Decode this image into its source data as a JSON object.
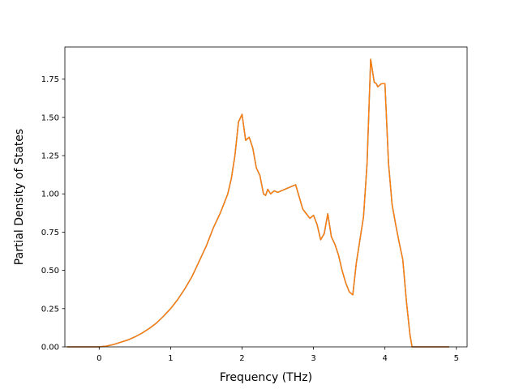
{
  "chart_data": {
    "type": "line",
    "title": "",
    "xlabel": "Frequency (THz)",
    "ylabel": "Partial Density of States",
    "xlim": [
      -0.48,
      5.15
    ],
    "ylim": [
      0,
      1.96
    ],
    "xticks": [
      0,
      1,
      2,
      3,
      4,
      5
    ],
    "xtick_labels": [
      "0",
      "1",
      "2",
      "3",
      "4",
      "5"
    ],
    "yticks": [
      0.0,
      0.25,
      0.5,
      0.75,
      1.0,
      1.25,
      1.5,
      1.75
    ],
    "ytick_labels": [
      "0.00",
      "0.25",
      "0.50",
      "0.75",
      "1.00",
      "1.25",
      "1.50",
      "1.75"
    ],
    "grid": false,
    "legend": "none",
    "series": [
      {
        "color": "#1f77b4",
        "x": [
          -0.45,
          0.0,
          0.1,
          0.2,
          0.3,
          0.4,
          0.5,
          0.6,
          0.7,
          0.8,
          0.9,
          1.0,
          1.1,
          1.2,
          1.3,
          1.4,
          1.5,
          1.55,
          1.6,
          1.7,
          1.8,
          1.85,
          1.9,
          1.95,
          2.0,
          2.05,
          2.1,
          2.15,
          2.2,
          2.25,
          2.3,
          2.33,
          2.36,
          2.4,
          2.45,
          2.5,
          2.55,
          2.6,
          2.65,
          2.7,
          2.75,
          2.8,
          2.85,
          2.9,
          2.95,
          3.0,
          3.05,
          3.1,
          3.15,
          3.2,
          3.25,
          3.3,
          3.35,
          3.4,
          3.45,
          3.5,
          3.55,
          3.6,
          3.65,
          3.7,
          3.75,
          3.8,
          3.85,
          3.88,
          3.9,
          3.95,
          4.0,
          4.05,
          4.1,
          4.15,
          4.2,
          4.25,
          4.3,
          4.35,
          4.38,
          4.42,
          4.45,
          4.9
        ],
        "y": [
          0.0,
          0.0,
          0.005,
          0.015,
          0.03,
          0.045,
          0.065,
          0.09,
          0.12,
          0.155,
          0.2,
          0.25,
          0.31,
          0.38,
          0.46,
          0.56,
          0.66,
          0.72,
          0.78,
          0.88,
          1.0,
          1.1,
          1.25,
          1.47,
          1.52,
          1.35,
          1.37,
          1.3,
          1.17,
          1.12,
          1.0,
          0.99,
          1.03,
          1.0,
          1.02,
          1.01,
          1.02,
          1.03,
          1.04,
          1.05,
          1.06,
          0.98,
          0.9,
          0.87,
          0.84,
          0.86,
          0.8,
          0.7,
          0.74,
          0.87,
          0.72,
          0.67,
          0.6,
          0.5,
          0.42,
          0.36,
          0.34,
          0.55,
          0.7,
          0.85,
          1.2,
          1.88,
          1.73,
          1.72,
          1.7,
          1.72,
          1.72,
          1.2,
          0.93,
          0.8,
          0.68,
          0.57,
          0.3,
          0.08,
          0.0,
          0.0,
          0.0,
          0.0
        ]
      },
      {
        "color": "#ff7f0e",
        "x": [
          -0.45,
          0.0,
          0.1,
          0.2,
          0.3,
          0.4,
          0.5,
          0.6,
          0.7,
          0.8,
          0.9,
          1.0,
          1.1,
          1.2,
          1.3,
          1.4,
          1.5,
          1.55,
          1.6,
          1.7,
          1.8,
          1.85,
          1.9,
          1.95,
          2.0,
          2.05,
          2.1,
          2.15,
          2.2,
          2.25,
          2.3,
          2.33,
          2.36,
          2.4,
          2.45,
          2.5,
          2.55,
          2.6,
          2.65,
          2.7,
          2.75,
          2.8,
          2.85,
          2.9,
          2.95,
          3.0,
          3.05,
          3.1,
          3.15,
          3.2,
          3.25,
          3.3,
          3.35,
          3.4,
          3.45,
          3.5,
          3.55,
          3.6,
          3.65,
          3.7,
          3.75,
          3.8,
          3.85,
          3.88,
          3.9,
          3.95,
          4.0,
          4.05,
          4.1,
          4.15,
          4.2,
          4.25,
          4.3,
          4.35,
          4.38,
          4.42,
          4.45,
          4.9
        ],
        "y": [
          0.0,
          0.0,
          0.005,
          0.015,
          0.03,
          0.045,
          0.065,
          0.09,
          0.12,
          0.155,
          0.2,
          0.25,
          0.31,
          0.38,
          0.46,
          0.56,
          0.66,
          0.72,
          0.78,
          0.88,
          1.0,
          1.1,
          1.25,
          1.47,
          1.52,
          1.35,
          1.37,
          1.3,
          1.17,
          1.12,
          1.0,
          0.99,
          1.03,
          1.0,
          1.02,
          1.01,
          1.02,
          1.03,
          1.04,
          1.05,
          1.06,
          0.98,
          0.9,
          0.87,
          0.84,
          0.86,
          0.8,
          0.7,
          0.74,
          0.87,
          0.72,
          0.67,
          0.6,
          0.5,
          0.42,
          0.36,
          0.34,
          0.55,
          0.7,
          0.85,
          1.2,
          1.88,
          1.73,
          1.72,
          1.7,
          1.72,
          1.72,
          1.2,
          0.93,
          0.8,
          0.68,
          0.57,
          0.3,
          0.08,
          0.0,
          0.0,
          0.0,
          0.0
        ]
      }
    ]
  }
}
